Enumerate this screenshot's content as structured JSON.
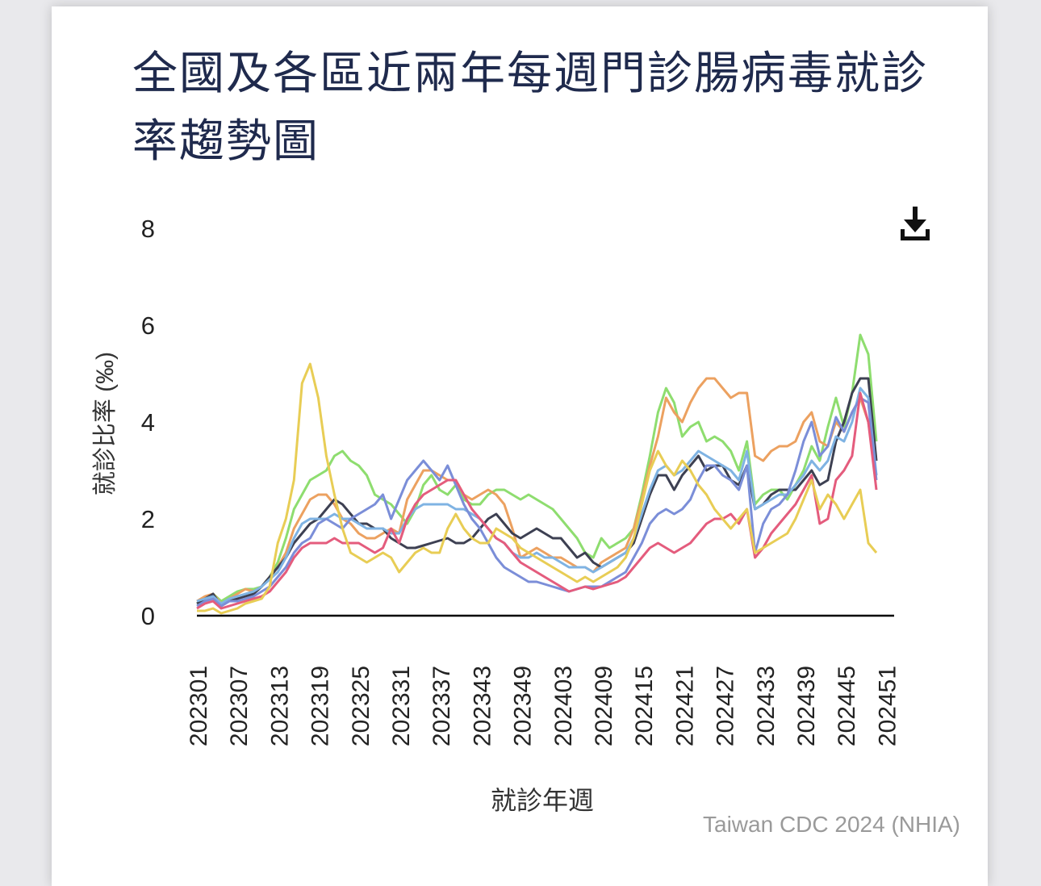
{
  "title": "全國及各區近兩年每週門診腸病毒就診率趨勢圖",
  "credit": "Taiwan CDC 2024 (NHIA)",
  "download_icon": "download-icon",
  "chart_data": {
    "type": "line",
    "title": "全國及各區近兩年每週門診腸病毒就診率趨勢圖",
    "xlabel": "就診年週",
    "ylabel": "就診比率 (‰)",
    "ylim": [
      0,
      8
    ],
    "yticks": [
      0,
      2,
      4,
      6,
      8
    ],
    "xticks": [
      "202301",
      "202307",
      "202313",
      "202319",
      "202325",
      "202331",
      "202337",
      "202343",
      "202349",
      "202403",
      "202409",
      "202415",
      "202421",
      "202427",
      "202433",
      "202439",
      "202445",
      "202451"
    ],
    "x_start_tick": "202301",
    "x_end_tick": "202451",
    "grid": false,
    "series": [
      {
        "color": "#8edd6f",
        "values": [
          0.25,
          0.35,
          0.45,
          0.3,
          0.4,
          0.5,
          0.55,
          0.55,
          0.6,
          0.8,
          1.1,
          1.6,
          2.2,
          2.5,
          2.8,
          2.9,
          3.0,
          3.3,
          3.4,
          3.2,
          3.1,
          2.9,
          2.5,
          2.4,
          2.3,
          2.1,
          1.9,
          2.2,
          2.7,
          2.9,
          2.6,
          2.5,
          2.7,
          2.4,
          2.3,
          2.3,
          2.5,
          2.6,
          2.6,
          2.5,
          2.4,
          2.5,
          2.4,
          2.3,
          2.2,
          2.0,
          1.8,
          1.6,
          1.3,
          1.2,
          1.6,
          1.4,
          1.5,
          1.6,
          1.8,
          2.5,
          3.3,
          4.2,
          4.7,
          4.4,
          3.7,
          3.9,
          4.0,
          3.6,
          3.7,
          3.6,
          3.4,
          3.0,
          3.6,
          2.3,
          2.5,
          2.6,
          2.6,
          2.4,
          2.7,
          3.0,
          3.5,
          3.2,
          3.9,
          4.5,
          3.9,
          4.6,
          5.8,
          5.4,
          3.6
        ]
      },
      {
        "color": "#eca160",
        "values": [
          0.3,
          0.4,
          0.45,
          0.25,
          0.35,
          0.45,
          0.55,
          0.5,
          0.6,
          0.8,
          1.0,
          1.3,
          1.8,
          2.1,
          2.4,
          2.5,
          2.5,
          2.3,
          2.0,
          1.9,
          1.7,
          1.6,
          1.6,
          1.7,
          1.8,
          1.7,
          2.4,
          2.7,
          3.0,
          3.0,
          2.9,
          2.8,
          2.8,
          2.5,
          2.4,
          2.5,
          2.6,
          2.5,
          2.3,
          1.8,
          1.2,
          1.3,
          1.4,
          1.3,
          1.2,
          1.2,
          1.1,
          1.0,
          1.0,
          0.9,
          1.1,
          1.2,
          1.3,
          1.4,
          1.8,
          2.4,
          3.1,
          3.7,
          4.5,
          4.2,
          4.0,
          4.4,
          4.7,
          4.9,
          4.9,
          4.7,
          4.5,
          4.6,
          4.6,
          3.3,
          3.2,
          3.4,
          3.5,
          3.5,
          3.6,
          4.0,
          4.2,
          3.6,
          3.5,
          4.0,
          3.8,
          4.2,
          4.5,
          4.0,
          2.9
        ]
      },
      {
        "color": "#3d4052",
        "values": [
          0.25,
          0.35,
          0.45,
          0.2,
          0.3,
          0.35,
          0.4,
          0.45,
          0.6,
          0.8,
          1.0,
          1.2,
          1.5,
          1.7,
          1.9,
          2.0,
          2.2,
          2.4,
          2.3,
          2.1,
          1.9,
          1.9,
          1.8,
          1.8,
          1.6,
          1.5,
          1.4,
          1.4,
          1.45,
          1.5,
          1.55,
          1.6,
          1.5,
          1.5,
          1.6,
          1.8,
          2.0,
          2.1,
          1.9,
          1.7,
          1.6,
          1.7,
          1.8,
          1.7,
          1.6,
          1.6,
          1.4,
          1.2,
          1.3,
          1.1,
          1.0,
          1.1,
          1.2,
          1.3,
          1.5,
          2.0,
          2.5,
          2.9,
          2.9,
          2.6,
          2.9,
          3.1,
          3.3,
          3.0,
          3.1,
          3.1,
          2.8,
          2.7,
          3.1,
          2.2,
          2.3,
          2.5,
          2.6,
          2.6,
          2.6,
          2.8,
          3.0,
          2.7,
          2.8,
          3.6,
          4.0,
          4.6,
          4.9,
          4.9,
          3.2
        ]
      },
      {
        "color": "#7fb3e3",
        "values": [
          0.3,
          0.35,
          0.4,
          0.25,
          0.35,
          0.4,
          0.45,
          0.5,
          0.6,
          0.75,
          0.9,
          1.2,
          1.6,
          1.9,
          2.0,
          2.0,
          2.0,
          2.1,
          2.0,
          2.0,
          1.9,
          1.8,
          1.8,
          1.8,
          1.7,
          1.7,
          2.0,
          2.2,
          2.3,
          2.3,
          2.3,
          2.3,
          2.2,
          2.2,
          2.1,
          2.0,
          1.8,
          1.6,
          1.5,
          1.3,
          1.2,
          1.2,
          1.3,
          1.2,
          1.2,
          1.1,
          1.0,
          1.0,
          1.0,
          0.9,
          1.0,
          1.1,
          1.2,
          1.3,
          1.6,
          2.1,
          2.6,
          3.0,
          3.1,
          2.9,
          3.0,
          3.2,
          3.4,
          3.3,
          3.2,
          3.1,
          3.0,
          2.8,
          3.4,
          2.2,
          2.3,
          2.4,
          2.5,
          2.5,
          2.7,
          2.9,
          3.2,
          3.0,
          3.2,
          3.7,
          3.6,
          4.0,
          4.7,
          4.5,
          2.9
        ]
      },
      {
        "color": "#7b8ed8",
        "values": [
          0.2,
          0.3,
          0.35,
          0.2,
          0.3,
          0.3,
          0.35,
          0.4,
          0.5,
          0.6,
          0.8,
          1.0,
          1.3,
          1.5,
          1.6,
          1.9,
          2.0,
          1.9,
          1.8,
          2.0,
          2.1,
          2.2,
          2.3,
          2.5,
          2.0,
          2.4,
          2.8,
          3.0,
          3.2,
          3.0,
          2.8,
          3.1,
          2.7,
          2.3,
          2.0,
          1.8,
          1.5,
          1.2,
          1.0,
          0.9,
          0.8,
          0.7,
          0.7,
          0.65,
          0.6,
          0.55,
          0.5,
          0.55,
          0.6,
          0.6,
          0.6,
          0.7,
          0.8,
          0.9,
          1.2,
          1.5,
          1.9,
          2.1,
          2.2,
          2.1,
          2.2,
          2.4,
          2.8,
          3.1,
          3.1,
          2.9,
          2.8,
          2.6,
          3.1,
          1.3,
          1.9,
          2.2,
          2.3,
          2.5,
          3.0,
          3.6,
          4.0,
          3.3,
          3.5,
          4.1,
          3.8,
          4.2,
          4.5,
          4.4,
          2.8
        ]
      },
      {
        "color": "#e45c7d",
        "values": [
          0.15,
          0.25,
          0.3,
          0.15,
          0.2,
          0.25,
          0.3,
          0.35,
          0.4,
          0.5,
          0.7,
          0.9,
          1.2,
          1.4,
          1.5,
          1.5,
          1.5,
          1.6,
          1.5,
          1.5,
          1.5,
          1.4,
          1.3,
          1.4,
          1.8,
          1.5,
          2.0,
          2.3,
          2.5,
          2.6,
          2.7,
          2.8,
          2.8,
          2.5,
          2.2,
          2.0,
          1.8,
          1.6,
          1.5,
          1.3,
          1.1,
          1.0,
          0.9,
          0.8,
          0.7,
          0.6,
          0.5,
          0.55,
          0.6,
          0.55,
          0.6,
          0.65,
          0.7,
          0.8,
          1.0,
          1.2,
          1.4,
          1.5,
          1.4,
          1.3,
          1.4,
          1.5,
          1.7,
          1.9,
          2.0,
          2.0,
          2.1,
          1.9,
          2.2,
          1.2,
          1.4,
          1.7,
          1.9,
          2.1,
          2.3,
          2.6,
          2.9,
          1.9,
          2.0,
          2.8,
          3.0,
          3.3,
          4.6,
          4.0,
          2.6
        ]
      },
      {
        "color": "#e8cd55",
        "values": [
          0.1,
          0.1,
          0.15,
          0.05,
          0.1,
          0.15,
          0.25,
          0.3,
          0.35,
          0.6,
          1.5,
          2.0,
          2.8,
          4.8,
          5.2,
          4.5,
          3.3,
          2.5,
          1.8,
          1.3,
          1.2,
          1.1,
          1.2,
          1.3,
          1.2,
          0.9,
          1.1,
          1.3,
          1.4,
          1.3,
          1.3,
          1.8,
          2.1,
          1.8,
          1.6,
          1.5,
          1.5,
          1.8,
          1.7,
          1.6,
          1.4,
          1.3,
          1.2,
          1.1,
          1.0,
          0.9,
          0.8,
          0.7,
          0.8,
          0.7,
          0.8,
          0.9,
          1.0,
          1.2,
          1.6,
          2.3,
          3.0,
          3.4,
          3.1,
          2.9,
          3.2,
          3.0,
          2.7,
          2.5,
          2.2,
          2.0,
          1.8,
          2.0,
          2.2,
          1.3,
          1.4,
          1.5,
          1.6,
          1.7,
          2.0,
          2.4,
          2.8,
          2.2,
          2.5,
          2.3,
          2.0,
          2.3,
          2.6,
          1.5,
          1.3
        ]
      }
    ]
  }
}
